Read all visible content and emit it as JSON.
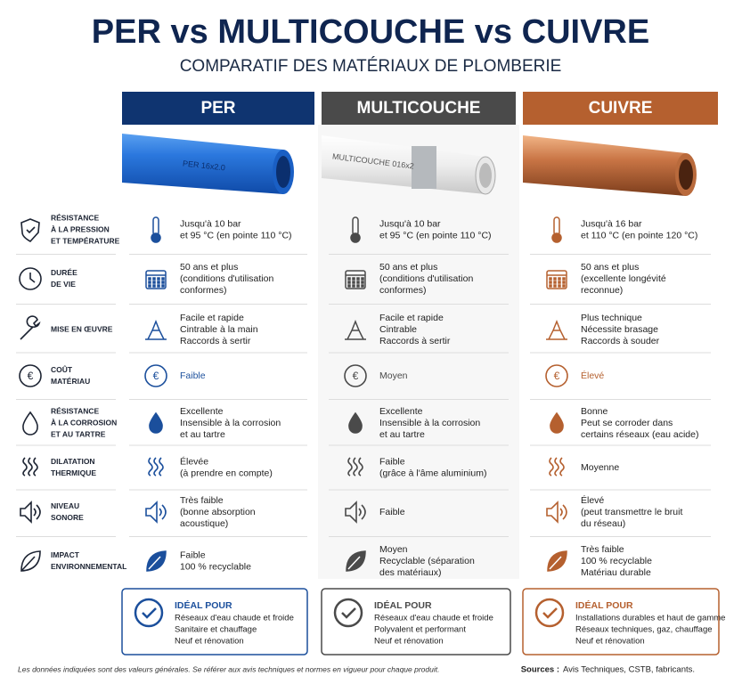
{
  "title": "PER vs MULTICOUCHE vs CUIVRE",
  "subtitle": "COMPARATIF DES MATÉRIAUX DE PLOMBERIE",
  "columns": [
    {
      "name": "PER",
      "pipe_label": "PER 16x2.0"
    },
    {
      "name": "MULTICOUCHE",
      "pipe_label": "MULTICOUCHE 016x2"
    },
    {
      "name": "CUIVRE"
    }
  ],
  "rows": [
    {
      "label": [
        "RÉSISTANCE",
        "À LA PRESSION",
        "ET TEMPÉRATURE"
      ],
      "cells": [
        [
          "Jusqu'à 10 bar",
          "et 95 °C (en pointe 110 °C)"
        ],
        [
          "Jusqu'à 10 bar",
          "et 95 °C (en pointe 110 °C)"
        ],
        [
          "Jusqu'à 16 bar",
          "et 110 °C (en pointe 120 °C)"
        ]
      ]
    },
    {
      "label": [
        "DURÉE",
        "DE VIE"
      ],
      "cells": [
        [
          "50 ans et plus",
          "(conditions d'utilisation",
          "conformes)"
        ],
        [
          "50 ans et plus",
          "(conditions d'utilisation",
          "conformes)"
        ],
        [
          "50 ans et plus",
          "(excellente longévité",
          "reconnue)"
        ]
      ]
    },
    {
      "label": [
        "MISE EN ŒUVRE"
      ],
      "cells": [
        [
          "Facile et rapide",
          "Cintrable à la main",
          "Raccords à sertir"
        ],
        [
          "Facile et rapide",
          "Cintrable",
          "Raccords à sertir"
        ],
        [
          "Plus technique",
          "Nécessite brasage",
          "Raccords à souder"
        ]
      ]
    },
    {
      "label": [
        "COÛT",
        "MATÉRIAU"
      ],
      "cells": [
        [
          "Faible"
        ],
        [
          "Moyen"
        ],
        [
          "Élevé"
        ]
      ]
    },
    {
      "label": [
        "RÉSISTANCE",
        "À LA CORROSION",
        "ET AU TARTRE"
      ],
      "cells": [
        [
          "Excellente",
          "Insensible à la corrosion",
          "et au tartre"
        ],
        [
          "Excellente",
          "Insensible à la corrosion",
          "et au tartre"
        ],
        [
          "Bonne",
          "Peut se corroder dans",
          "certains réseaux (eau acide)"
        ]
      ]
    },
    {
      "label": [
        "DILATATION",
        "THERMIQUE"
      ],
      "cells": [
        [
          "Élevée",
          "(à prendre en compte)"
        ],
        [
          "Faible",
          "(grâce à l'âme aluminium)"
        ],
        [
          "Moyenne"
        ]
      ]
    },
    {
      "label": [
        "NIVEAU",
        "SONORE"
      ],
      "cells": [
        [
          "Très faible",
          "(bonne absorption",
          "acoustique)"
        ],
        [
          "Faible"
        ],
        [
          "Élevé",
          "(peut transmettre le bruit",
          "du réseau)"
        ]
      ]
    },
    {
      "label": [
        "IMPACT",
        "ENVIRONNEMENTAL"
      ],
      "cells": [
        [
          "Faible",
          "100 % recyclable"
        ],
        [
          "Moyen",
          "Recyclable (séparation",
          "des matériaux)"
        ],
        [
          "Très faible",
          "100 % recyclable",
          "Matériau durable"
        ]
      ]
    }
  ],
  "ideal": [
    {
      "heading": "IDÉAL POUR",
      "lines": [
        "Réseaux d'eau chaude et froide",
        "Sanitaire et chauffage",
        "Neuf et rénovation"
      ]
    },
    {
      "heading": "IDÉAL POUR",
      "lines": [
        "Réseaux d'eau chaude et froide",
        "Polyvalent et performant",
        "Neuf et rénovation"
      ]
    },
    {
      "heading": "IDÉAL POUR",
      "lines": [
        "Installations durables et haut de gamme",
        "Réseaux techniques, gaz, chauffage",
        "Neuf et rénovation"
      ]
    }
  ],
  "footnote": "Les données indiquées sont des valeurs générales. Se référer aux avis techniques et normes en vigueur pour chaque produit.",
  "sources_label": "Sources :",
  "sources": "Avis Techniques, CSTB, fabricants."
}
